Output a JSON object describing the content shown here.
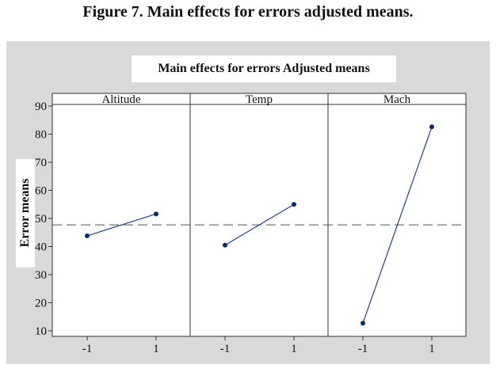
{
  "caption": "Figure 7. Main effects for errors adjusted means.",
  "colors": {
    "frame_background": "#d9d9d9",
    "plot_background": "#ffffff",
    "series_line": "#1f3f8f",
    "series_marker": "#0a2c66",
    "reference_line": "#555555"
  },
  "chart_data": {
    "type": "line",
    "title": "Main effects for errors Adjusted means",
    "ylabel": "Error means",
    "xlabel": "",
    "ylim": [
      10,
      90
    ],
    "yticks": [
      10,
      20,
      30,
      40,
      50,
      60,
      70,
      80,
      90
    ],
    "xticks": [
      "-1",
      "1"
    ],
    "grid": false,
    "reference_line": {
      "style": "dashed",
      "y": 47.7
    },
    "panels": [
      {
        "name": "Altitude",
        "x": [
          "-1",
          "1"
        ],
        "values": [
          43.8,
          51.6
        ]
      },
      {
        "name": "Temp",
        "x": [
          "-1",
          "1"
        ],
        "values": [
          40.5,
          55.0
        ]
      },
      {
        "name": "Mach",
        "x": [
          "-1",
          "1"
        ],
        "values": [
          12.7,
          82.6
        ]
      }
    ]
  }
}
